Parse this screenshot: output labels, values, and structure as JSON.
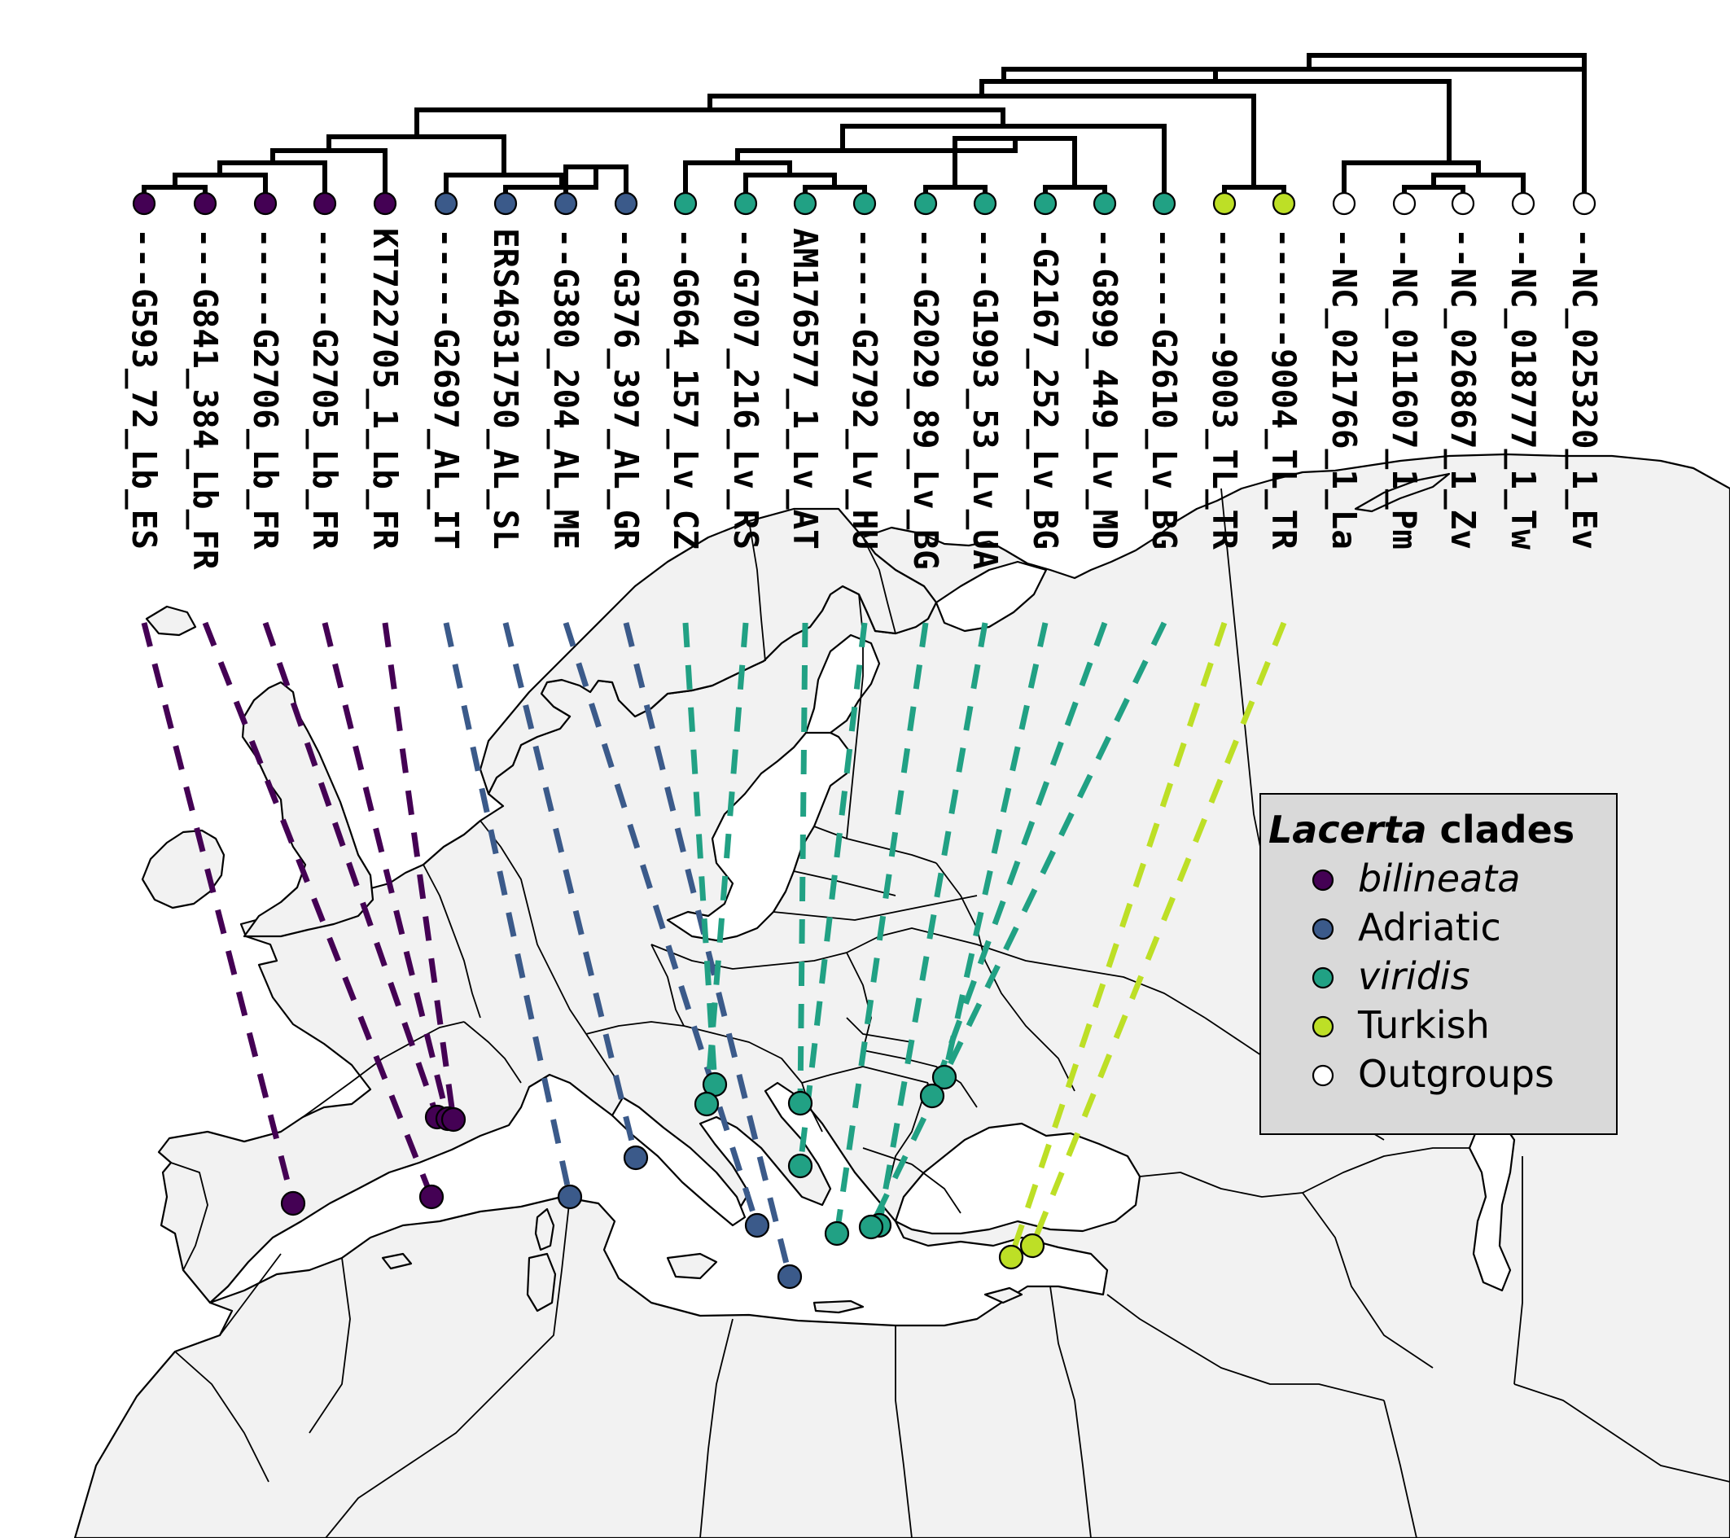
{
  "colors": {
    "bilineata": "#440154",
    "Adriatic": "#3b5a8a",
    "viridis": "#21a184",
    "Turkish": "#bddf26",
    "Outgroups": "#ffffff",
    "land": "#f2f2f2",
    "border": "#000000"
  },
  "tips": [
    {
      "label": "---G593_72_Lb_ES",
      "clade": "bilineata"
    },
    {
      "label": "---G841_384_Lb_FR",
      "clade": "bilineata"
    },
    {
      "label": "-----G2706_Lb_FR",
      "clade": "bilineata"
    },
    {
      "label": "-----G2705_Lb_FR",
      "clade": "bilineata"
    },
    {
      "label": "KT722705_1_Lb_FR",
      "clade": "bilineata"
    },
    {
      "label": "-----G2697_AL_IT",
      "clade": "Adriatic"
    },
    {
      "label": "ERS4631750_AL_SL",
      "clade": "Adriatic"
    },
    {
      "label": "--G380_204_AL_ME",
      "clade": "Adriatic"
    },
    {
      "label": "--G376_397_AL_GR",
      "clade": "Adriatic"
    },
    {
      "label": "--G664_157_Lv_CZ",
      "clade": "viridis"
    },
    {
      "label": "--G707_216_Lv_RS",
      "clade": "viridis"
    },
    {
      "label": "AM176577_1_Lv_AT",
      "clade": "viridis"
    },
    {
      "label": "-----G2792_Lv_HU",
      "clade": "viridis"
    },
    {
      "label": "---G2029_89_Lv_BG",
      "clade": "viridis"
    },
    {
      "label": "---G1993_53_Lv_UA",
      "clade": "viridis"
    },
    {
      "label": "-G2167_252_Lv_BG",
      "clade": "viridis"
    },
    {
      "label": "--G899_449_Lv_MD",
      "clade": "viridis"
    },
    {
      "label": "-----G2610_Lv_BG",
      "clade": "viridis"
    },
    {
      "label": "------9003_TL_TR",
      "clade": "Turkish"
    },
    {
      "label": "------9004_TL_TR",
      "clade": "Turkish"
    },
    {
      "label": "--NC_021766_1_La",
      "clade": "Outgroups"
    },
    {
      "label": "--NC_011607_1_Pm",
      "clade": "Outgroups"
    },
    {
      "label": "--NC_026867_1_Zv",
      "clade": "Outgroups"
    },
    {
      "label": "--NC_018777_1_Tw",
      "clade": "Outgroups"
    },
    {
      "label": "--NC_025320_1_Ev",
      "clade": "Outgroups"
    }
  ],
  "legend": {
    "title_italic": "Lacerta",
    "title_rest": " clades",
    "entries": [
      {
        "label": "bilineata",
        "italic": true,
        "clade": "bilineata"
      },
      {
        "label": "Adriatic",
        "italic": false,
        "clade": "Adriatic"
      },
      {
        "label": "viridis",
        "italic": true,
        "clade": "viridis"
      },
      {
        "label": "Turkish",
        "italic": false,
        "clade": "Turkish"
      },
      {
        "label": "Outgroups",
        "italic": false,
        "clade": "Outgroups"
      }
    ]
  }
}
